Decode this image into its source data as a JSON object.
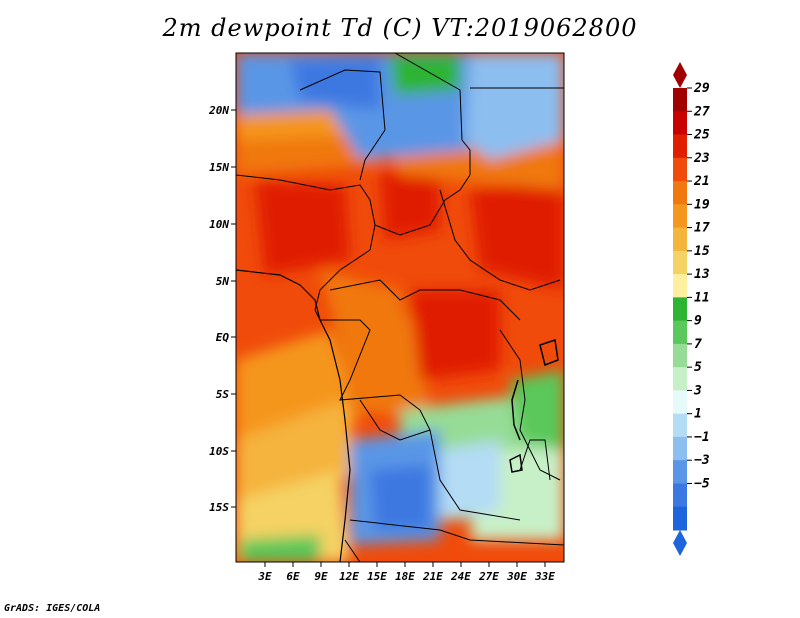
{
  "title": "2m dewpoint Td (C) VT:2019062800",
  "footer": "GrADS: IGES/COLA",
  "map": {
    "lat_labels": [
      "20N",
      "15N",
      "10N",
      "5N",
      "EQ",
      "5S",
      "10S",
      "15S"
    ],
    "lon_labels": [
      "3E",
      "6E",
      "9E",
      "12E",
      "15E",
      "18E",
      "21E",
      "24E",
      "27E",
      "30E",
      "33E"
    ]
  },
  "colorbar": {
    "labels": [
      "29",
      "27",
      "25",
      "23",
      "21",
      "19",
      "17",
      "15",
      "13",
      "11",
      "9",
      "7",
      "5",
      "3",
      "1",
      "−1",
      "−3",
      "−5"
    ],
    "colors": [
      "#a00000",
      "#c80000",
      "#e01e00",
      "#f04b0a",
      "#f0780f",
      "#f5961e",
      "#f5b43c",
      "#f5d264",
      "#fff0a0",
      "#2db432",
      "#5ac85a",
      "#96dc96",
      "#c8f0c8",
      "#e6fafa",
      "#b4dcf5",
      "#8cbef0",
      "#5a96e6",
      "#3c78e1",
      "#1e64dc"
    ]
  },
  "colors": {
    "frame": "#000000",
    "background": "#ffffff"
  }
}
